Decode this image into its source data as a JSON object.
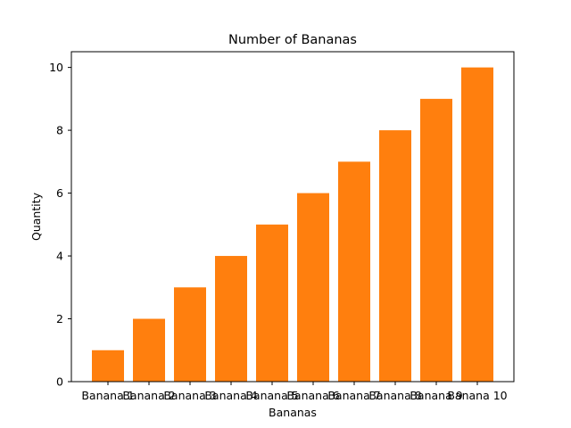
{
  "chart_data": {
    "type": "bar",
    "title": "Number of Bananas",
    "xlabel": "Bananas",
    "ylabel": "Quantity",
    "categories": [
      "Banana 1",
      "Banana 2",
      "Banana 3",
      "Banana 4",
      "Banana 5",
      "Banana 6",
      "Banana 7",
      "Banana 8",
      "Banana 9",
      "Banana 10"
    ],
    "values": [
      1,
      2,
      3,
      4,
      5,
      6,
      7,
      8,
      9,
      10
    ],
    "ylim": [
      0,
      10.5
    ],
    "yticks": [
      0,
      2,
      4,
      6,
      8,
      10
    ],
    "grid": false,
    "bar_color": "#ff7f0e"
  }
}
